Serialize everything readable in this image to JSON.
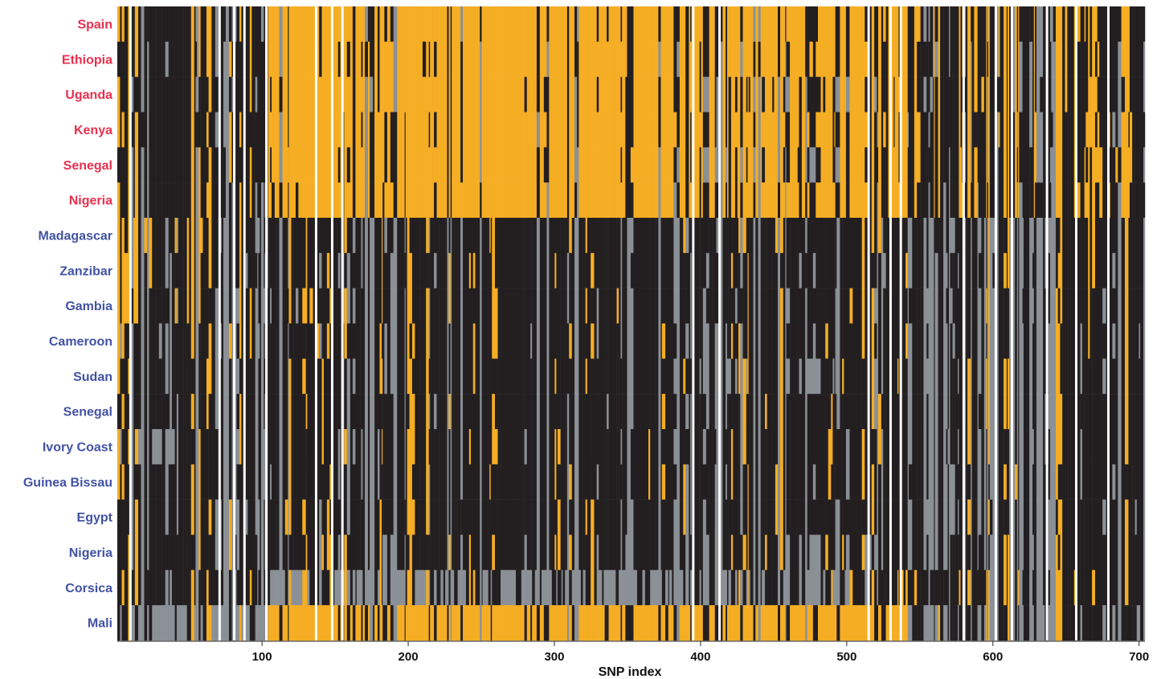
{
  "chart_data": {
    "type": "heatmap",
    "xlabel": "SNP index",
    "x_ticks": [
      100,
      200,
      300,
      400,
      500,
      600,
      700
    ],
    "xlim": [
      1,
      704
    ],
    "rows": [
      {
        "label": "Spain",
        "group": "red"
      },
      {
        "label": "Ethiopia",
        "group": "red"
      },
      {
        "label": "Uganda",
        "group": "red"
      },
      {
        "label": "Kenya",
        "group": "red"
      },
      {
        "label": "Senegal",
        "group": "red"
      },
      {
        "label": "Nigeria",
        "group": "red"
      },
      {
        "label": "Madagascar",
        "group": "blue"
      },
      {
        "label": "Zanzibar",
        "group": "blue"
      },
      {
        "label": "Gambia",
        "group": "blue"
      },
      {
        "label": "Cameroon",
        "group": "blue"
      },
      {
        "label": "Sudan",
        "group": "blue"
      },
      {
        "label": "Senegal",
        "group": "blue"
      },
      {
        "label": "Ivory Coast",
        "group": "blue"
      },
      {
        "label": "Guinea Bissau",
        "group": "blue"
      },
      {
        "label": "Egypt",
        "group": "blue"
      },
      {
        "label": "Nigeria",
        "group": "blue"
      },
      {
        "label": "Corsica",
        "group": "blue"
      },
      {
        "label": "Mali",
        "group": "blue"
      }
    ],
    "cell_states": [
      "orange",
      "black",
      "gray"
    ],
    "missing_columns": [
      10,
      71,
      81,
      88,
      103,
      137,
      148,
      155,
      395,
      413,
      515,
      530,
      537,
      580,
      602,
      613,
      637,
      657,
      679
    ],
    "dominant_state_by_region": [
      {
        "rows": "Spain–Nigeria (top block)",
        "snp_range": [
          104,
          394
        ],
        "state": "orange"
      },
      {
        "rows": "Madagascar–Corsica",
        "snp_range": [
          104,
          394
        ],
        "state": "black"
      },
      {
        "rows": "Corsica",
        "snp_range": [
          104,
          394
        ],
        "state": "gray"
      },
      {
        "rows": "Mali",
        "snp_range": [
          104,
          394
        ],
        "state": "orange"
      }
    ],
    "colors": {
      "orange": "#f5ad23",
      "black": "#231f20",
      "gray": "#8a9096",
      "label_red": "#e8304f",
      "label_blue": "#4252a4"
    }
  }
}
